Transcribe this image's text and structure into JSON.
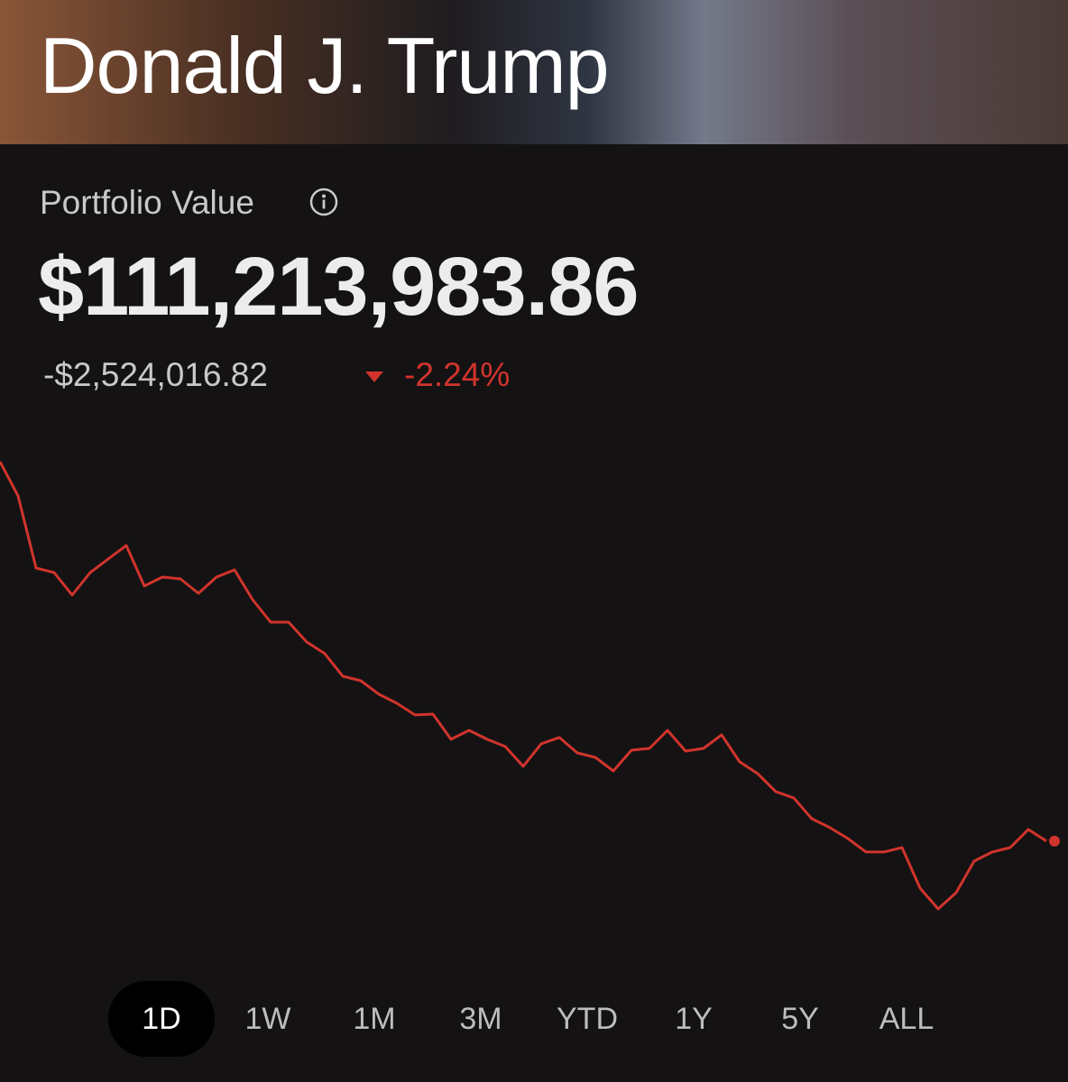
{
  "header": {
    "title": "Donald J. Trump"
  },
  "portfolio": {
    "label": "Portfolio Value",
    "value": "$111,213,983.86",
    "change": "-$2,524,016.82",
    "change_percent": "-2.24%"
  },
  "chart_data": {
    "type": "line",
    "color": "#d0342c",
    "values": [
      113756000,
      113527000,
      113043000,
      113013000,
      112862000,
      113013000,
      113104000,
      113194000,
      112923000,
      112983000,
      112971000,
      112874000,
      112983000,
      113031000,
      112832000,
      112681000,
      112681000,
      112548000,
      112470000,
      112319000,
      112288000,
      112198000,
      112137000,
      112059000,
      112065000,
      111896000,
      111956000,
      111896000,
      111848000,
      111715000,
      111866000,
      111908000,
      111805000,
      111775000,
      111684000,
      111823000,
      111835000,
      111956000,
      111817000,
      111835000,
      111926000,
      111745000,
      111666000,
      111546000,
      111503000,
      111364000,
      111304000,
      111231000,
      111141000,
      111141000,
      111171000,
      110899000,
      110760000,
      110869000,
      111080000,
      111141000,
      111171000,
      111292000,
      111214000
    ]
  },
  "ranges": [
    "1D",
    "1W",
    "1M",
    "3M",
    "YTD",
    "1Y",
    "5Y",
    "ALL"
  ]
}
